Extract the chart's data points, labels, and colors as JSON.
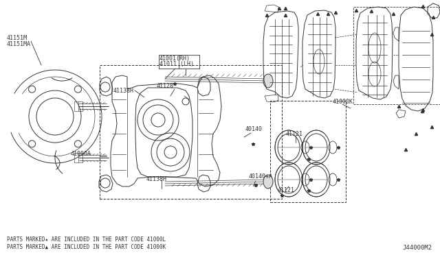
{
  "bg_color": "#ffffff",
  "diagram_id": "J44000M2",
  "footer_line1": "PARTS MARKED★ ARE INCLUDED IN THE PART CODE 41000L",
  "footer_line2": "PARTS MARKED▲ ARE INCLUDED IN THE PART CODE 41000K",
  "lc": "#333333",
  "lw": 0.7
}
